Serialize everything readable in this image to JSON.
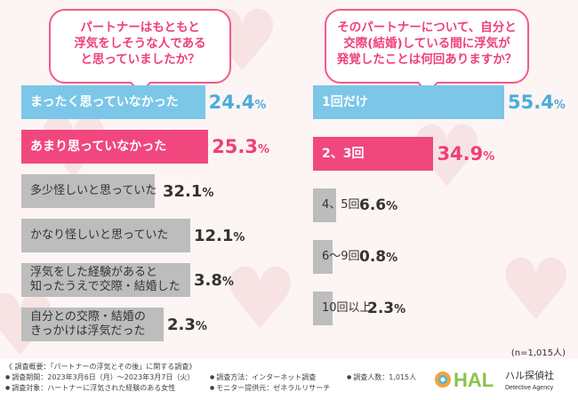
{
  "left_question": "パートナーはもともと\n浮気をしそうな人である\nと思っていましたか？",
  "right_question": "そのパートナーについて、自分と\n交際(結婚)している間に浮気が\n発覚したことは何回ありますか？",
  "chart_data": [
    {
      "type": "bar",
      "orientation": "horizontal",
      "title": "パートナーはもともと浮気をしそうな人であると思っていましたか？",
      "unit": "%",
      "categories": [
        "まったく思っていなかった",
        "あまり思っていなかった",
        "多少怪しいと思っていた",
        "かなり怪しいと思っていた",
        "浮気をした経験があると\n知ったうえで交際・結婚した",
        "自分との交際・結婚の\nきっかけは浮気だった"
      ],
      "values": [
        24.4,
        25.3,
        32.1,
        12.1,
        3.8,
        2.3
      ],
      "colors": [
        "#7cc6e8",
        "#f0477f",
        "#bdbdbd",
        "#bdbdbd",
        "#bdbdbd",
        "#bdbdbd"
      ],
      "value_colors": [
        "#4aaddc",
        "#ef3f7a",
        "#333333",
        "#333333",
        "#333333",
        "#333333"
      ]
    },
    {
      "type": "bar",
      "orientation": "horizontal",
      "title": "そのパートナーについて、自分と交際(結婚)している間に浮気が発覚したことは何回ありますか？",
      "unit": "%",
      "categories": [
        "1回だけ",
        "2、3回",
        "4、5回",
        "6～9回",
        "10回以上"
      ],
      "values": [
        55.4,
        34.9,
        6.6,
        0.8,
        2.3
      ],
      "colors": [
        "#7cc6e8",
        "#f0477f",
        "#bdbdbd",
        "#bdbdbd",
        "#bdbdbd"
      ],
      "value_colors": [
        "#4aaddc",
        "#ef3f7a",
        "#333333",
        "#333333",
        "#333333"
      ],
      "note": "(n=1,015人)"
    }
  ],
  "footer": {
    "title": "《 調査概要：「パートナーの浮気とその後」に関する調査》",
    "period": "調査期間：2023年3月6日（月）～2023年3月7日（火）",
    "target": "調査対象：ハートナーに浮気された経験のある女性",
    "method": "調査方法：インターネット調査",
    "provider": "モニター提供元：ゼネラルリサーチ",
    "count": "調査人数：1,015人"
  },
  "logo": {
    "mark": "HAL",
    "name": "ハル探偵社",
    "sub": "Detective Agency"
  }
}
